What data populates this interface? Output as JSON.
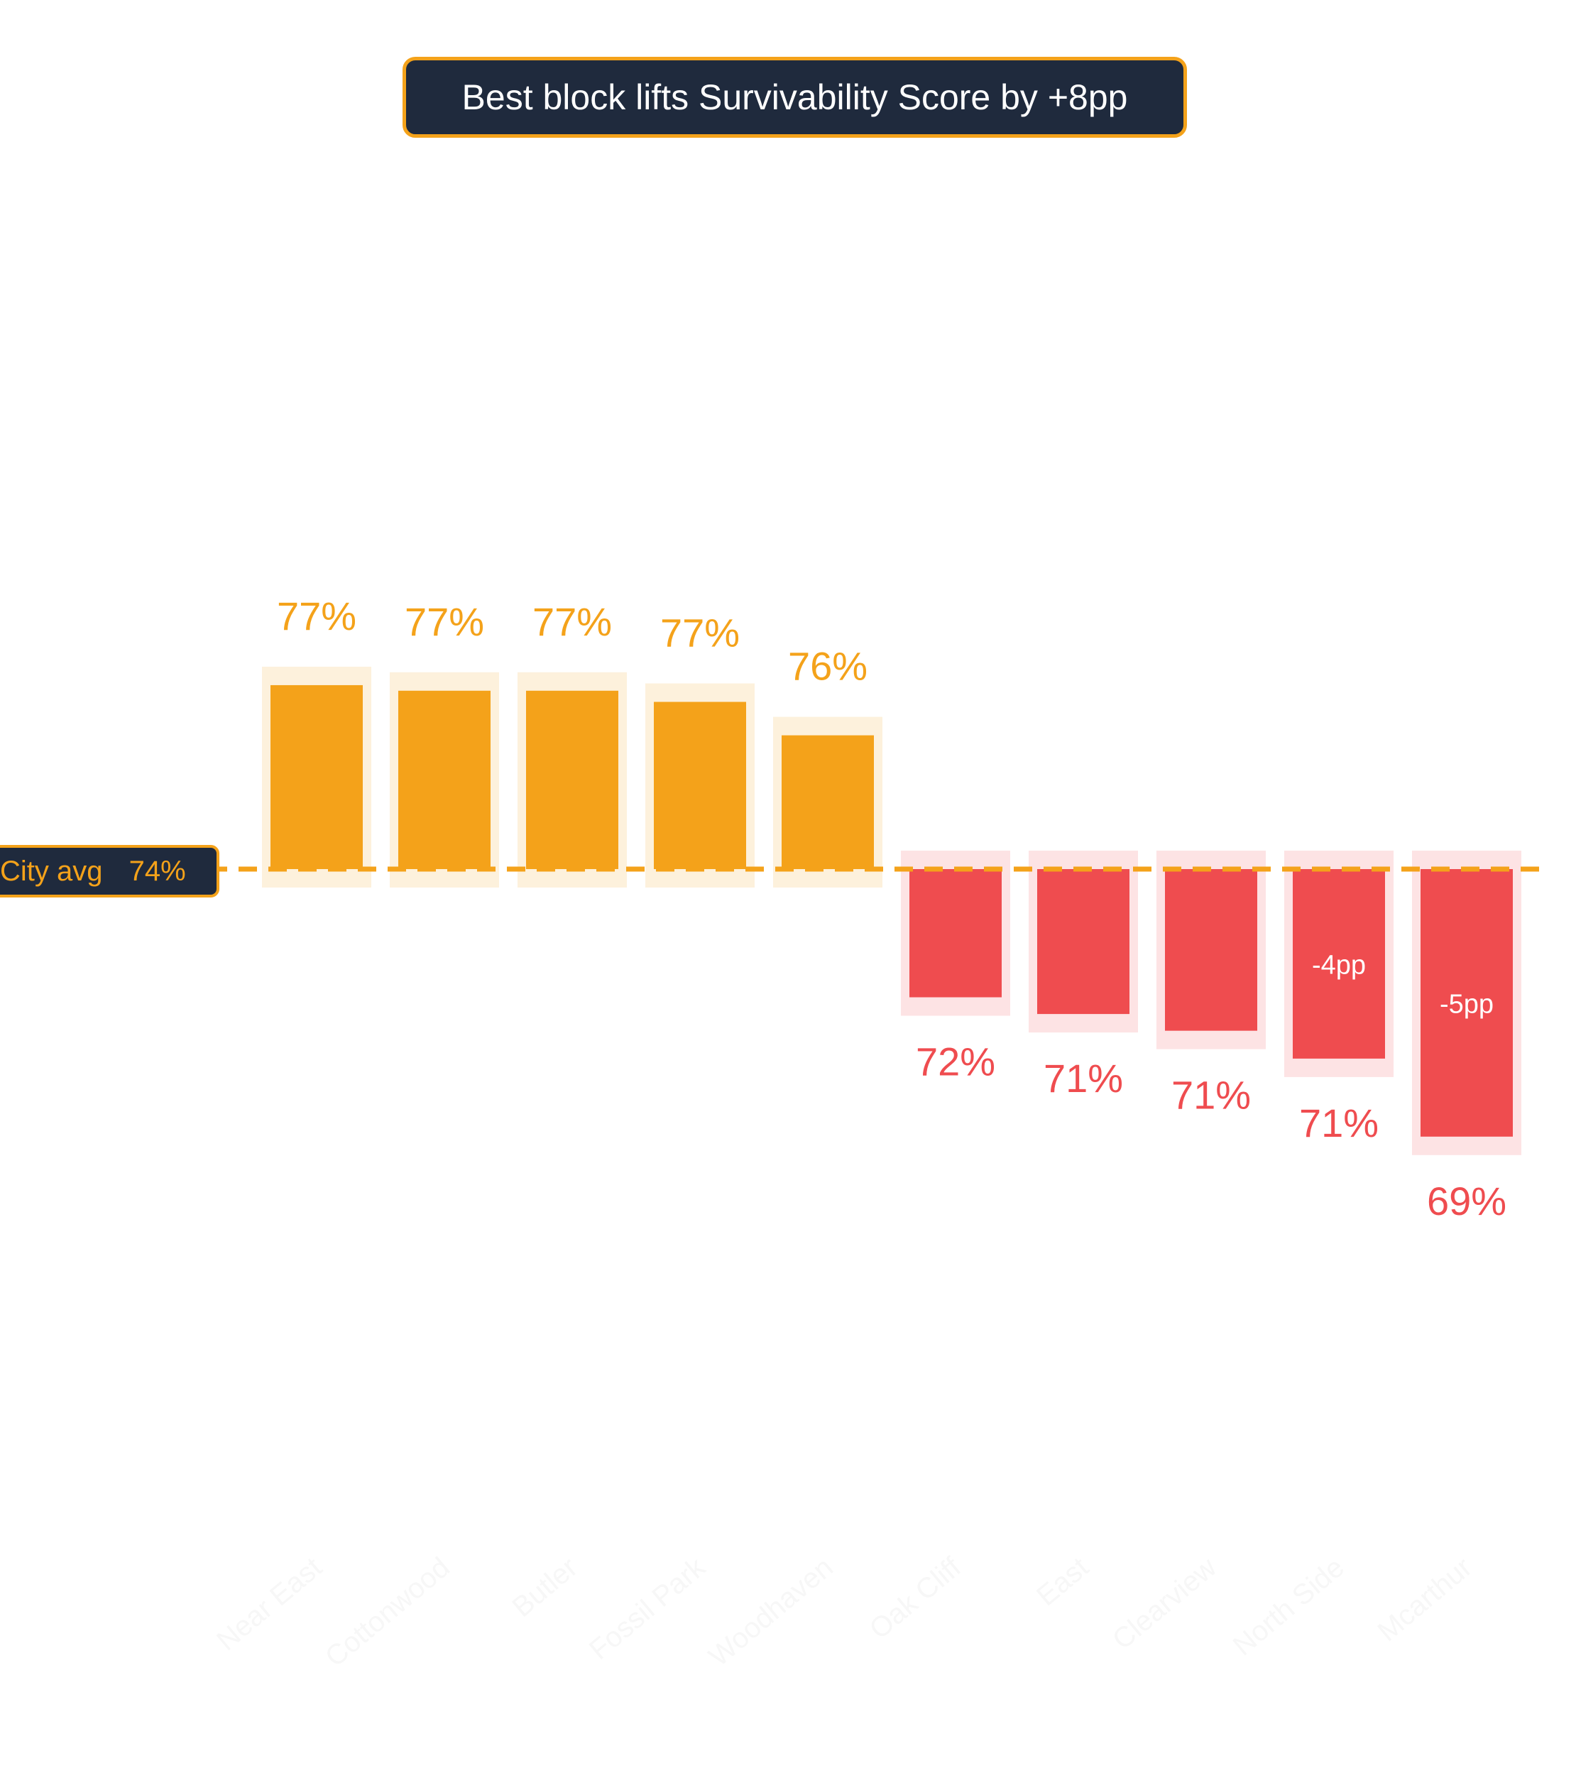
{
  "title": "Best block lifts Survivability Score by +8pp",
  "reference_line": {
    "label": "City avg",
    "value_label": "74%",
    "value": 74
  },
  "colors": {
    "above": "#f4a21a",
    "above_halo": "#fdf1dc",
    "below": "#ef4c4f",
    "below_halo": "#fde3e4",
    "avg_line": "#f4a21a",
    "badge_bg": "#1f2a3d",
    "tick_text": "#f7f7f7"
  },
  "chart_data": {
    "type": "bar",
    "title": "Best block lifts Survivability Score by +8pp",
    "categories": [
      "Near East",
      "Cottonwood",
      "Butler",
      "Fossil Park",
      "Woodhaven",
      "Oak Cliff",
      "East",
      "Clearview",
      "North Side",
      "Mcarthur"
    ],
    "values": [
      77.3,
      77.2,
      77.2,
      77.0,
      76.4,
      71.7,
      71.4,
      71.1,
      70.6,
      69.2
    ],
    "value_labels": [
      "77%",
      "77%",
      "77%",
      "77%",
      "76%",
      "72%",
      "71%",
      "71%",
      "71%",
      "69%"
    ],
    "delta_labels": [
      "",
      "",
      "",
      "",
      "",
      "",
      "",
      "",
      "-4pp",
      "-5pp"
    ],
    "baseline": 74,
    "xlabel": "",
    "ylabel": ""
  }
}
